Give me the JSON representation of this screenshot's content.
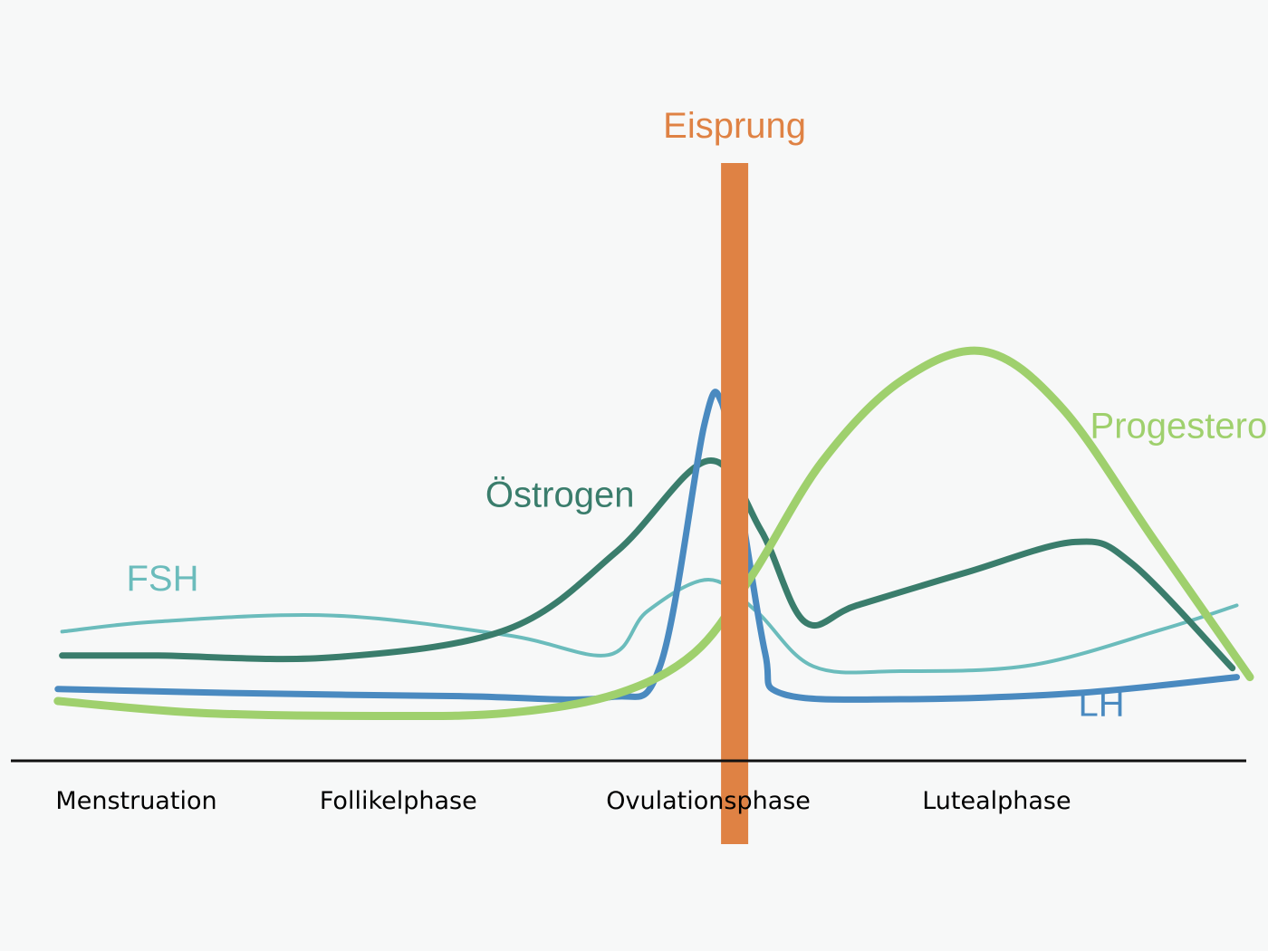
{
  "chart_data": {
    "type": "line",
    "title": "",
    "xlabel": "",
    "ylabel": "",
    "xlim": [
      0,
      28
    ],
    "ylim": [
      0,
      10
    ],
    "grid": false,
    "legend": "none",
    "colors": {
      "background": "#f7f8f8",
      "axis": "#111111",
      "event": "#df8244"
    },
    "phases": [
      {
        "key": "menstruation",
        "label": "Menstruation",
        "x": 2.5
      },
      {
        "key": "follikelphase",
        "label": "Follikelphase",
        "x": 8.5
      },
      {
        "key": "ovulationsphase",
        "label": "Ovulationsphase",
        "x": 15.6
      },
      {
        "key": "lutealphase",
        "label": "Lutealphase",
        "x": 22.2
      }
    ],
    "event": {
      "label": "Eisprung",
      "x": 16.2
    },
    "series": [
      {
        "key": "fsh",
        "name": "FSH",
        "color": "#6bbcbc",
        "weight": "thin",
        "label_anchor": [
          3.1,
          2.85
        ],
        "points": [
          [
            0.8,
            2.16
          ],
          [
            3,
            2.33
          ],
          [
            7,
            2.43
          ],
          [
            11,
            2.1
          ],
          [
            13.3,
            1.77
          ],
          [
            14.2,
            2.5
          ],
          [
            15.6,
            3.03
          ],
          [
            16.7,
            2.5
          ],
          [
            18,
            1.58
          ],
          [
            20,
            1.5
          ],
          [
            23,
            1.6
          ],
          [
            26,
            2.2
          ],
          [
            27.7,
            2.6
          ]
        ]
      },
      {
        "key": "oestrogen",
        "name": "Östrogen",
        "color": "#3a7d6c",
        "weight": "thick",
        "label_anchor": [
          12.2,
          4.25
        ],
        "points": [
          [
            0.8,
            1.76
          ],
          [
            3,
            1.76
          ],
          [
            7,
            1.73
          ],
          [
            11,
            2.2
          ],
          [
            13.5,
            3.5
          ],
          [
            15.6,
            5.02
          ],
          [
            16.8,
            3.86
          ],
          [
            17.8,
            2.33
          ],
          [
            19,
            2.6
          ],
          [
            21.5,
            3.15
          ],
          [
            24,
            3.66
          ],
          [
            25.3,
            3.3
          ],
          [
            27.6,
            1.55
          ]
        ]
      },
      {
        "key": "lh",
        "name": "LH",
        "color": "#4a8ac0",
        "weight": "thick",
        "label_anchor": [
          24.6,
          0.75
        ],
        "points": [
          [
            0.7,
            1.2
          ],
          [
            5,
            1.13
          ],
          [
            10,
            1.08
          ],
          [
            13.3,
            1.06
          ],
          [
            14.5,
            1.6
          ],
          [
            15.5,
            5.6
          ],
          [
            15.9,
            6.0
          ],
          [
            16.35,
            4.2
          ],
          [
            16.9,
            1.8
          ],
          [
            17.3,
            1.12
          ],
          [
            20,
            1.03
          ],
          [
            24,
            1.13
          ],
          [
            27.7,
            1.4
          ]
        ]
      },
      {
        "key": "progesteron",
        "name": "Progesteron",
        "color": "#9fd06d",
        "weight": "thickest",
        "label_anchor": [
          26.6,
          5.4
        ],
        "points": [
          [
            0.7,
            1.0
          ],
          [
            4,
            0.8
          ],
          [
            8,
            0.75
          ],
          [
            11,
            0.8
          ],
          [
            13.5,
            1.12
          ],
          [
            15.3,
            1.82
          ],
          [
            16.6,
            3.1
          ],
          [
            18.2,
            5.0
          ],
          [
            20,
            6.35
          ],
          [
            21.9,
            6.85
          ],
          [
            23.7,
            5.9
          ],
          [
            25.8,
            3.7
          ],
          [
            28,
            1.4
          ]
        ]
      }
    ]
  }
}
